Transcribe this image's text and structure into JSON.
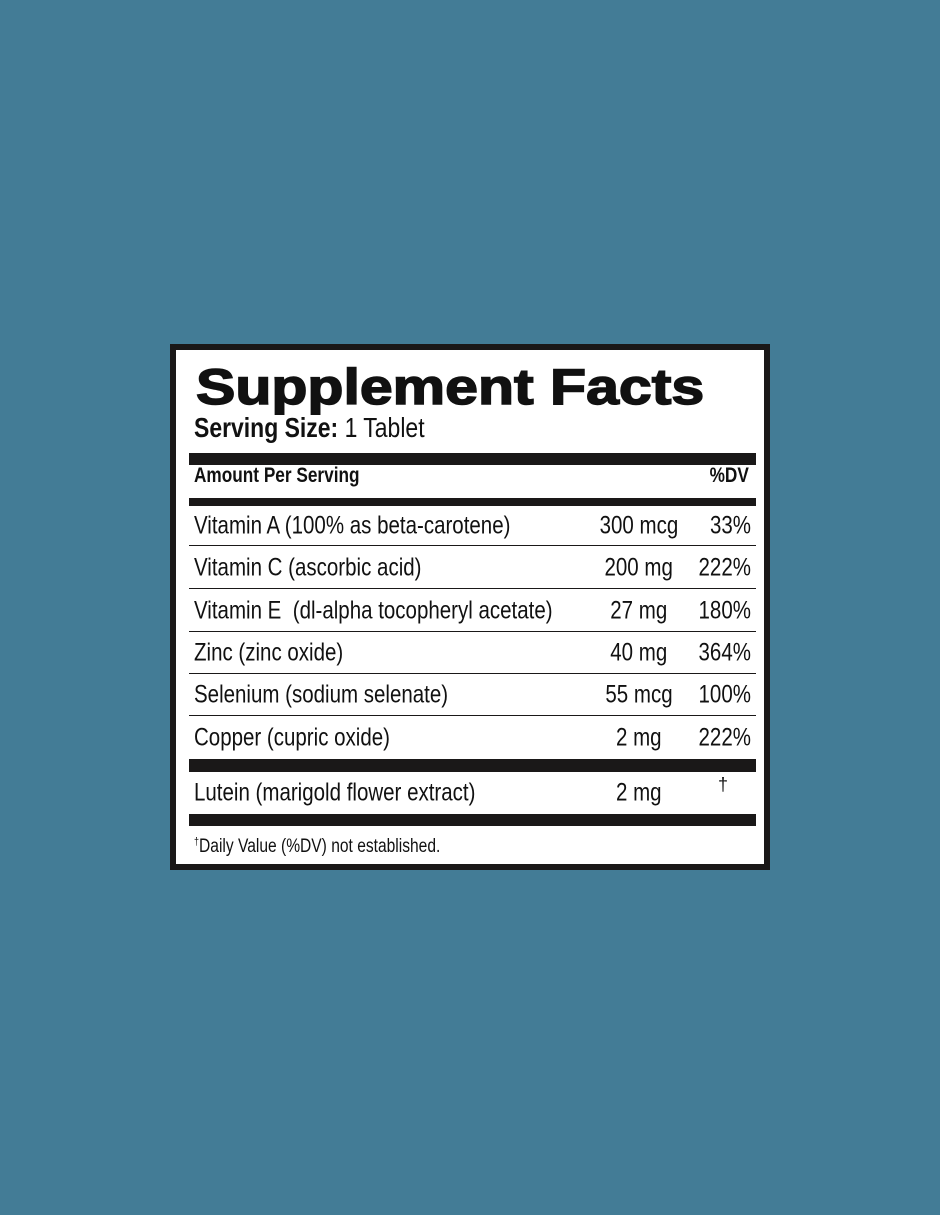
{
  "label": {
    "title": "Supplement Facts",
    "serving_size_label": "Serving Size:",
    "serving_size_value": "1 Tablet",
    "header_amount": "Amount Per Serving",
    "header_dv": "%DV",
    "rows": [
      {
        "name": "Vitamin A (100% as beta-carotene)",
        "amount": "300 mcg",
        "dv": "33%"
      },
      {
        "name": "Vitamin C (ascorbic acid)",
        "amount": "200 mg",
        "dv": "222%"
      },
      {
        "name": "Vitamin E  (dl-alpha tocopheryl acetate)",
        "amount": "27 mg",
        "dv": "180%"
      },
      {
        "name": "Zinc (zinc oxide)",
        "amount": "40 mg",
        "dv": "364%"
      },
      {
        "name": "Selenium (sodium selenate)",
        "amount": "55 mcg",
        "dv": "100%"
      },
      {
        "name": "Copper (cupric oxide)",
        "amount": "2 mg",
        "dv": "222%"
      }
    ],
    "other_rows": [
      {
        "name": "Lutein (marigold flower extract)",
        "amount": "2 mg",
        "dv": "†"
      }
    ],
    "footnote_mark": "†",
    "footnote": "Daily Value (%DV) not established."
  },
  "colors": {
    "background": "#437c96",
    "ink": "#1a1818",
    "panel": "#ffffff"
  }
}
